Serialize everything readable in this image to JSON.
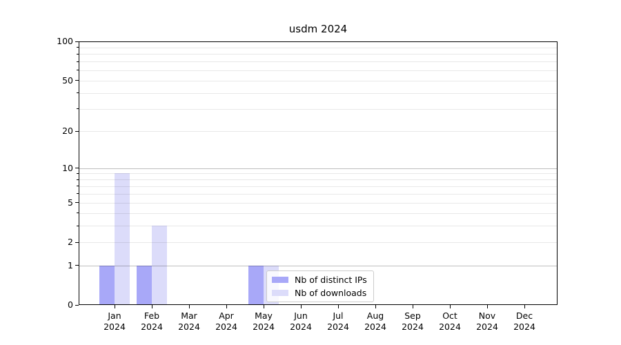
{
  "chart_data": {
    "type": "bar",
    "title": "usdm 2024",
    "categories": [
      "Jan 2024",
      "Feb 2024",
      "Mar 2024",
      "Apr 2024",
      "May 2024",
      "Jun 2024",
      "Jul 2024",
      "Aug 2024",
      "Sep 2024",
      "Oct 2024",
      "Nov 2024",
      "Dec 2024"
    ],
    "series": [
      {
        "name": "Nb of distinct IPs",
        "color": "#a8a8f8",
        "values": [
          1,
          1,
          0,
          0,
          1,
          0,
          0,
          0,
          0,
          0,
          0,
          0
        ]
      },
      {
        "name": "Nb of downloads",
        "color": "#dcdcfa",
        "values": [
          9,
          3,
          0,
          0,
          1,
          0,
          0,
          0,
          0,
          0,
          0,
          0
        ]
      }
    ],
    "yscale": "log1p",
    "ylim": [
      0,
      100
    ],
    "ytick_labels": [
      "0",
      "1",
      "2",
      "5",
      "10",
      "20",
      "50",
      "100"
    ],
    "ytick_values": [
      0,
      1,
      2,
      5,
      10,
      20,
      50,
      100
    ],
    "major_gridlines": [
      1,
      10,
      100
    ],
    "minor_gridlines": [
      2,
      3,
      4,
      5,
      6,
      7,
      8,
      9,
      20,
      30,
      40,
      50,
      60,
      70,
      80,
      90
    ],
    "grid": true,
    "legend": {
      "position": "lower-center",
      "labels": [
        "Nb of distinct IPs",
        "Nb of downloads"
      ]
    }
  },
  "colors": {
    "spine": "#000000",
    "major_grid": "rgba(0,0,0,0.26)",
    "minor_grid": "rgba(0,0,0,0.09)",
    "title_text": "#000000"
  }
}
